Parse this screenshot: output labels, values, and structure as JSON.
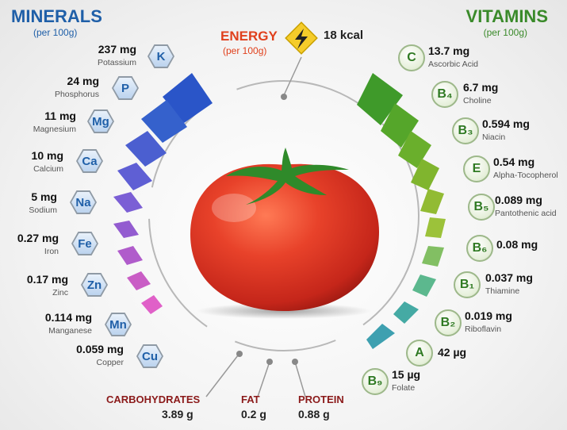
{
  "minerals": {
    "title": "MINERALS",
    "subtitle": "(per 100g)",
    "items": [
      {
        "symbol": "K",
        "amount": "237 mg",
        "name": "Potassium"
      },
      {
        "symbol": "P",
        "amount": "24 mg",
        "name": "Phosphorus"
      },
      {
        "symbol": "Mg",
        "amount": "11 mg",
        "name": "Magnesium"
      },
      {
        "symbol": "Ca",
        "amount": "10 mg",
        "name": "Calcium"
      },
      {
        "symbol": "Na",
        "amount": "5 mg",
        "name": "Sodium"
      },
      {
        "symbol": "Fe",
        "amount": "0.27 mg",
        "name": "Iron"
      },
      {
        "symbol": "Zn",
        "amount": "0.17 mg",
        "name": "Zinc"
      },
      {
        "symbol": "Mn",
        "amount": "0.114 mg",
        "name": "Manganese"
      },
      {
        "symbol": "Cu",
        "amount": "0.059 mg",
        "name": "Copper"
      }
    ]
  },
  "vitamins": {
    "title": "VITAMINS",
    "subtitle": "(per 100g)",
    "items": [
      {
        "symbol": "C",
        "amount": "13.7 mg",
        "name": "Ascorbic Acid"
      },
      {
        "symbol": "B₄",
        "amount": "6.7 mg",
        "name": "Choline"
      },
      {
        "symbol": "B₃",
        "amount": "0.594 mg",
        "name": "Niacin"
      },
      {
        "symbol": "E",
        "amount": "0.54 mg",
        "name": "Alpha-Tocopherol"
      },
      {
        "symbol": "B₅",
        "amount": "0.089 mg",
        "name": "Pantothenic acid"
      },
      {
        "symbol": "B₆",
        "amount": "0.08 mg",
        "name": ""
      },
      {
        "symbol": "B₁",
        "amount": "0.037 mg",
        "name": "Thiamine"
      },
      {
        "symbol": "B₂",
        "amount": "0.019 mg",
        "name": "Riboflavin"
      },
      {
        "symbol": "A",
        "amount": "42 µg",
        "name": ""
      },
      {
        "symbol": "B₉",
        "amount": "15 µg",
        "name": "Folate"
      }
    ]
  },
  "energy": {
    "title": "ENERGY",
    "subtitle": "(per 100g)",
    "value": "18 kcal",
    "icon": "lightning-icon"
  },
  "macros": [
    {
      "label": "CARBOHYDRATES",
      "value": "3.89 g"
    },
    {
      "label": "FAT",
      "value": "0.2 g"
    },
    {
      "label": "PROTEIN",
      "value": "0.88 g"
    }
  ],
  "colors": {
    "minerals": "#1f5fa8",
    "vitamins": "#3a8a2a",
    "energy": "#e0401c",
    "macros": "#8b1a1a",
    "tomato": "#e03a22"
  }
}
